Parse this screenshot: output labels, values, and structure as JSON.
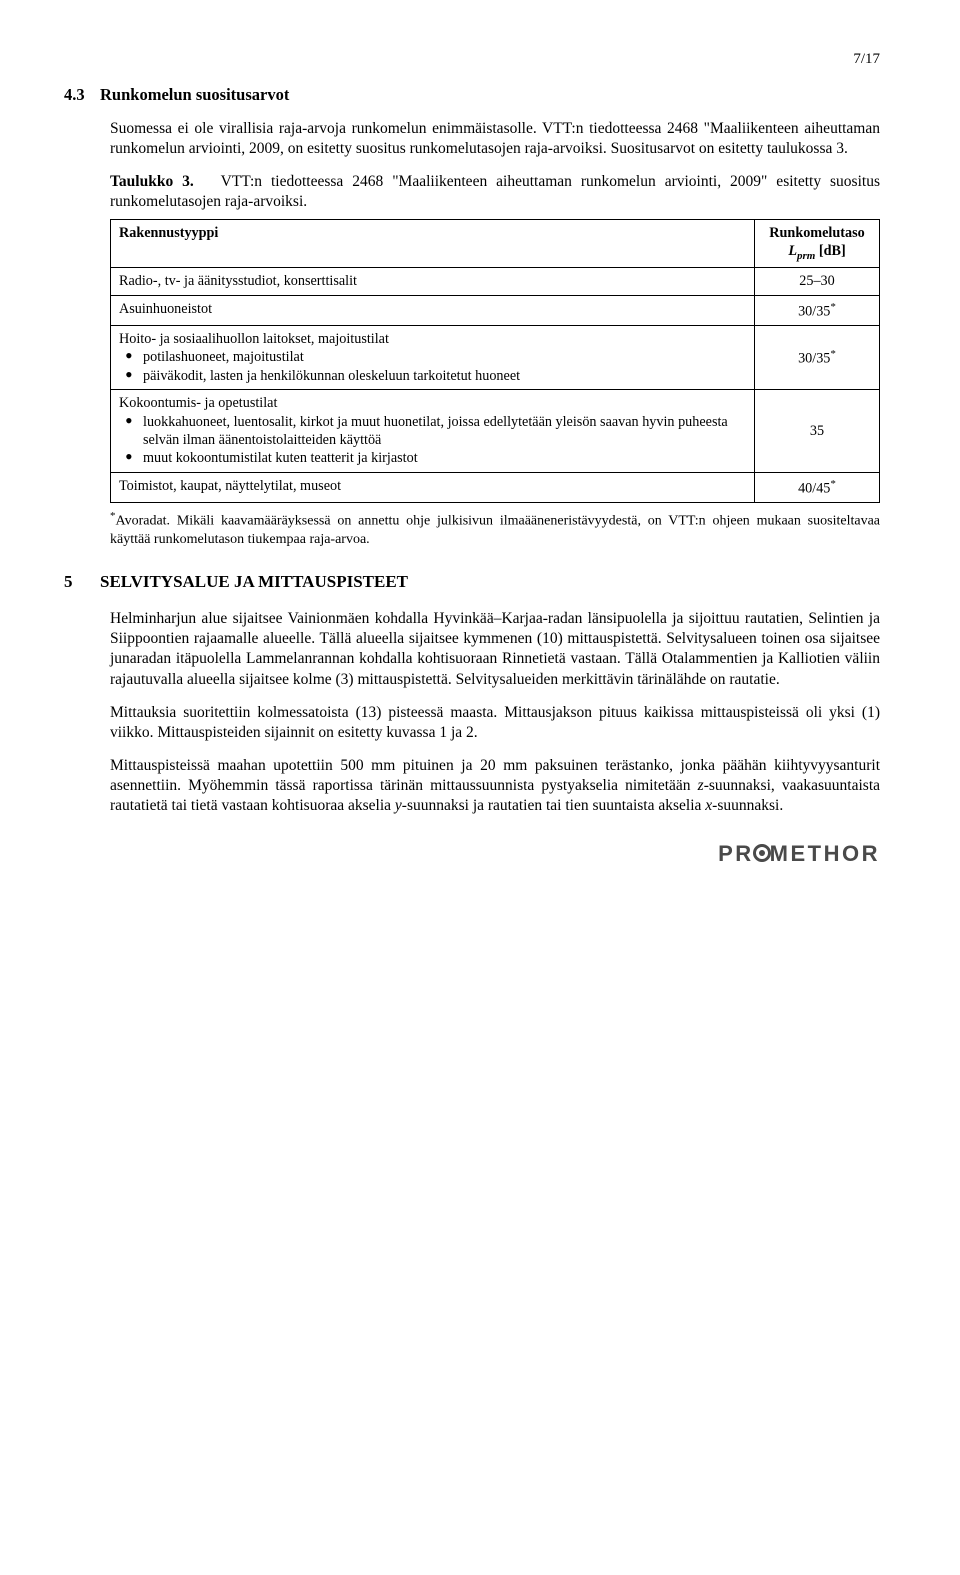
{
  "page_number": "7/17",
  "section43": {
    "num": "4.3",
    "title": "Runkomelun suositusarvot",
    "p1": "Suomessa ei ole virallisia raja-arvoja runkomelun enimmäistasolle. VTT:n tiedotteessa 2468 \"Maaliikenteen aiheuttaman runkomelun arviointi, 2009, on esitetty suositus runkomelutasojen raja-arvoiksi. Suositusarvot on esitetty taulukossa 3."
  },
  "table3": {
    "caption_label": "Taulukko 3.",
    "caption": "VTT:n tiedotteessa 2468 \"Maaliikenteen aiheuttaman runkomelun arviointi, 2009\" esitetty suositus runkomelutasojen raja-arvoiksi.",
    "header_left": "Rakennustyyppi",
    "header_right_l1": "Runkomelutaso",
    "header_right_sym": "L",
    "header_right_sub": "prm",
    "header_right_unit": " [dB]",
    "rows": [
      {
        "label": "Radio-, tv- ja äänitysstudiot, konserttisalit",
        "value": "25–30"
      },
      {
        "label": "Asuinhuoneistot",
        "value": "30/35",
        "sup": "*"
      }
    ],
    "group1": {
      "title": "Hoito- ja sosiaalihuollon laitokset, majoitustilat",
      "items": [
        "potilashuoneet, majoitustilat",
        "päiväkodit, lasten ja henkilökunnan oleskeluun tarkoitetut huoneet"
      ],
      "value": "30/35",
      "sup": "*"
    },
    "group2": {
      "title": "Kokoontumis- ja opetustilat",
      "items": [
        "luokkahuoneet, luentosalit, kirkot ja muut huonetilat, joissa edellytetään yleisön saavan hyvin puheesta selvän ilman äänentoistolaitteiden käyttöä",
        "muut kokoontumistilat kuten teatterit ja kirjastot"
      ],
      "value": "35"
    },
    "last": {
      "label": "Toimistot, kaupat, näyttelytilat, museot",
      "value": "40/45",
      "sup": "*"
    }
  },
  "footnote": {
    "mark": "*",
    "text": "Avoradat. Mikäli kaavamääräyksessä on annettu ohje julkisivun ilmaääneneristävyydestä, on VTT:n ohjeen mukaan suositeltavaa käyttää runkomelutason tiukempaa raja-arvoa."
  },
  "section5": {
    "num": "5",
    "title": "SELVITYSALUE JA MITTAUSPISTEET",
    "p1": "Helminharjun alue sijaitsee Vainionmäen kohdalla Hyvinkää–Karjaa-radan länsipuolella ja sijoittuu rautatien, Selintien ja Siippoontien rajaamalle alueelle. Tällä alueella sijaitsee kymmenen (10) mittauspistettä. Selvitysalueen toinen osa sijaitsee junaradan itäpuolella Lammelanrannan kohdalla kohtisuoraan Rinnetietä vastaan. Tällä Otalammentien ja Kalliotien väliin rajautuvalla alueella sijaitsee kolme (3) mittauspistettä. Selvitysalueiden merkittävin tärinälähde on rautatie.",
    "p2": "Mittauksia suoritettiin kolmessatoista (13) pisteessä maasta. Mittausjakson pituus kaikissa mittauspisteissä oli yksi (1) viikko. Mittauspisteiden sijainnit on esitetty kuvassa 1 ja 2.",
    "p3_a": "Mittauspisteissä maahan upotettiin 500 mm pituinen ja 20 mm paksuinen terästanko, jonka päähän kiihtyvyysanturit asennettiin. Myöhemmin tässä raportissa tärinän mittaussuunnista pystyakselia nimitetään ",
    "p3_z": "z",
    "p3_b": "-suunnaksi, vaakasuuntaista rautatietä tai tietä vastaan kohtisuoraa akselia ",
    "p3_y": "y",
    "p3_c": "-suunnaksi ja rautatien tai tien suuntaista akselia ",
    "p3_x": "x",
    "p3_d": "-suunnaksi."
  },
  "logo": {
    "pre": "PR",
    "post": "METHOR"
  }
}
